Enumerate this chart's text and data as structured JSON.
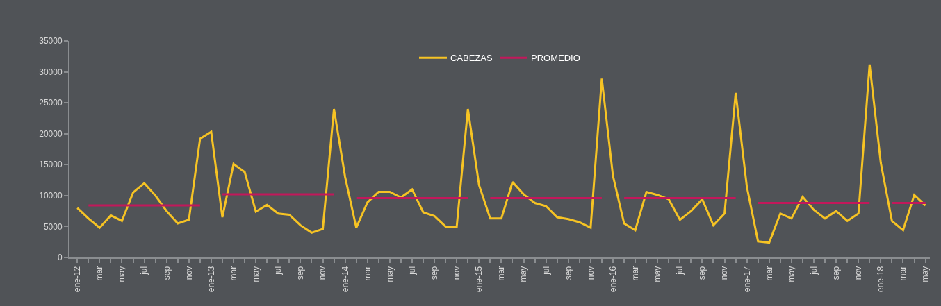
{
  "chart_data": {
    "type": "line",
    "categories": [
      "ene-12",
      null,
      "mar",
      null,
      "may",
      null,
      "jul",
      null,
      "sep",
      null,
      "nov",
      null,
      "ene-13",
      null,
      "mar",
      null,
      "may",
      null,
      "jul",
      null,
      "sep",
      null,
      "nov",
      null,
      "ene-14",
      null,
      "mar",
      null,
      "may",
      null,
      "jul",
      null,
      "sep",
      null,
      "nov",
      null,
      "ene-15",
      null,
      "mar",
      null,
      "may",
      null,
      "jul",
      null,
      "sep",
      null,
      "nov",
      null,
      "ene-16",
      null,
      "mar",
      null,
      "may",
      null,
      "jul",
      null,
      "sep",
      null,
      "nov",
      null,
      "ene-17",
      null,
      "mar",
      null,
      "may",
      null,
      "jul",
      null,
      "sep",
      null,
      "nov",
      null,
      "ene-18",
      null,
      "mar",
      null,
      "may"
    ],
    "series": [
      {
        "name": "CABEZAS",
        "color": "#f6c324",
        "values": [
          8000,
          6300,
          4800,
          6800,
          5900,
          10500,
          12000,
          10000,
          7500,
          5500,
          6100,
          19200,
          20300,
          6500,
          15100,
          13800,
          7400,
          8500,
          7100,
          6900,
          5200,
          4000,
          4600,
          24000,
          13000,
          4800,
          8900,
          10600,
          10600,
          9700,
          11000,
          7300,
          6700,
          5000,
          5000,
          24000,
          11700,
          6300,
          6300,
          12200,
          10200,
          8800,
          8300,
          6500,
          6200,
          5700,
          4800,
          28900,
          13200,
          5500,
          4400,
          10600,
          10100,
          9400,
          6100,
          7500,
          9400,
          5200,
          7100,
          26600,
          11400,
          2600,
          2400,
          7100,
          6300,
          9800,
          7700,
          6300,
          7500,
          5900,
          7100,
          31200,
          15300,
          5900,
          4400,
          10100,
          8400
        ]
      },
      {
        "name": "PROMEDIO",
        "color": "#c2185b",
        "values": [
          null,
          8400,
          8400,
          8400,
          8400,
          8400,
          8400,
          8400,
          8400,
          8400,
          8400,
          8400,
          null,
          10200,
          10200,
          10200,
          10200,
          10200,
          10200,
          10200,
          10200,
          10200,
          10200,
          10200,
          null,
          9600,
          9600,
          9600,
          9600,
          9600,
          9600,
          9600,
          9600,
          9600,
          9600,
          9600,
          null,
          9600,
          9600,
          9600,
          9600,
          9600,
          9600,
          9600,
          9600,
          9600,
          9600,
          9600,
          null,
          9600,
          9600,
          9600,
          9600,
          9600,
          9600,
          9600,
          9600,
          9600,
          9600,
          9600,
          null,
          8800,
          8800,
          8800,
          8800,
          8800,
          8800,
          8800,
          8800,
          8800,
          8800,
          8800,
          null,
          8800,
          8800,
          8800,
          8800
        ]
      }
    ],
    "ylim": [
      0,
      35000
    ],
    "yticks": [
      0,
      5000,
      10000,
      15000,
      20000,
      25000,
      30000,
      35000
    ],
    "grid": false,
    "legend": "top",
    "marker": "none",
    "line_style": "solid"
  }
}
